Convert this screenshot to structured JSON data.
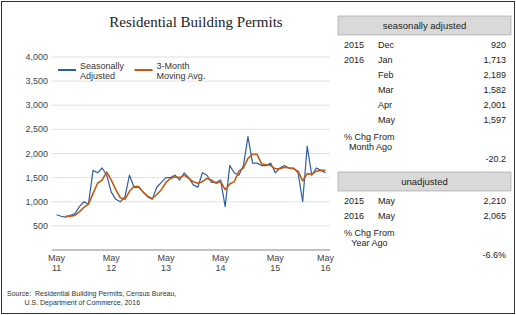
{
  "chart_data": {
    "type": "line",
    "title": "Residential Building Permits",
    "source": "Source:  Residential Building Permits, Census Bureau,\n         U.S. Department of Commerce, 2016",
    "categories": [
      "May\n11",
      null,
      null,
      null,
      null,
      null,
      null,
      null,
      null,
      null,
      null,
      null,
      "May\n12",
      null,
      null,
      null,
      null,
      null,
      null,
      null,
      null,
      null,
      null,
      null,
      "May\n13",
      null,
      null,
      null,
      null,
      null,
      null,
      null,
      null,
      null,
      null,
      null,
      "May\n14",
      null,
      null,
      null,
      null,
      null,
      null,
      null,
      null,
      null,
      null,
      null,
      "May\n15",
      null,
      null,
      null,
      null,
      null,
      null,
      null,
      null,
      null,
      null,
      "May\n16"
    ],
    "ylim": [
      0,
      4000
    ],
    "yticks": [
      500,
      {
        "value": 1000,
        "label": "1,000"
      },
      {
        "value": 1500,
        "label": "1,500"
      },
      {
        "value": 2000,
        "label": "2,000"
      },
      {
        "value": 2500,
        "label": "2,500"
      },
      {
        "value": 3000,
        "label": "3,000"
      },
      {
        "value": 3500,
        "label": "3,500"
      },
      {
        "value": 4000,
        "label": "4,000"
      }
    ],
    "grid": true,
    "legend": "upper left",
    "series": [
      {
        "name": "Seasonally\nAdjusted",
        "color": "#2e5fa3",
        "values": [
          730,
          700,
          680,
          720,
          750,
          900,
          1000,
          950,
          1650,
          1600,
          1700,
          1550,
          1200,
          1050,
          1000,
          1100,
          1550,
          1300,
          1300,
          1200,
          1100,
          1050,
          1300,
          1400,
          1500,
          1500,
          1550,
          1450,
          1600,
          1500,
          1350,
          1300,
          1600,
          1550,
          1400,
          1400,
          1450,
          900,
          1750,
          1600,
          1550,
          1750,
          2350,
          1800,
          1800,
          1750,
          1750,
          1800,
          1600,
          1700,
          1750,
          1700,
          1700,
          1600,
          1000,
          2150,
          1550,
          1700,
          1650,
          1600
        ]
      },
      {
        "name": "3-Month\nMoving Avg.",
        "color": "#c55a11",
        "values": [
          null,
          null,
          703,
          700,
          717,
          790,
          883,
          950,
          1167,
          1383,
          1450,
          1617,
          1450,
          1250,
          1083,
          1050,
          1217,
          1317,
          1317,
          1200,
          1117,
          1067,
          1150,
          1250,
          1400,
          1483,
          1517,
          1500,
          1550,
          1483,
          1417,
          1383,
          1417,
          1483,
          1450,
          1383,
          1417,
          1250,
          1367,
          1417,
          1633,
          1700,
          1900,
          1983,
          1983,
          1783,
          1767,
          1750,
          1683,
          1683,
          1717,
          1700,
          1683,
          1633,
          1433,
          1583,
          1567,
          1633,
          1650,
          1650
        ]
      }
    ],
    "tables": [
      {
        "title": "seasonally adjusted",
        "rows": [
          [
            "2015",
            "Dec",
            "920"
          ],
          [
            "2016",
            "Jan",
            "1,713"
          ],
          [
            "",
            "Feb",
            "2,189"
          ],
          [
            "",
            "Mar",
            "1,582"
          ],
          [
            "",
            "Apr",
            "2,001"
          ],
          [
            "",
            "May",
            "1,597"
          ]
        ],
        "change_label": "% Chg From\n  Month Ago",
        "change_value": "-20.2"
      },
      {
        "title": "unadjusted",
        "rows": [
          [
            "2015",
            "May",
            "2,210"
          ],
          [
            "2016",
            "May",
            "2,065"
          ]
        ],
        "change_label": "% Chg From\n   Year Ago",
        "change_value": "-6.6%"
      }
    ]
  }
}
